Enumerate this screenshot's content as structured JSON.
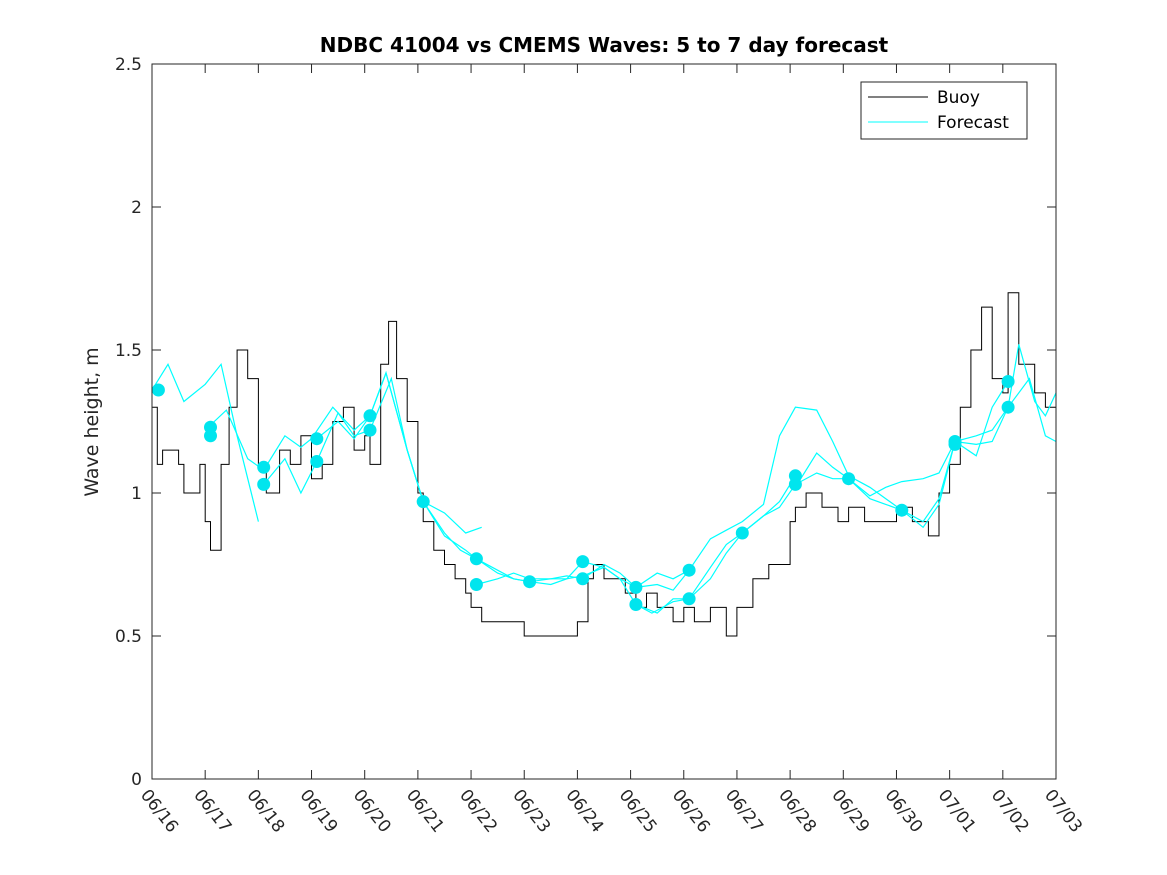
{
  "chart_data": {
    "type": "line",
    "title": "NDBC 41004 vs CMEMS Waves: 5 to 7 day forecast",
    "xlabel": "",
    "ylabel": "Wave height, m",
    "xlim": [
      0,
      17
    ],
    "ylim": [
      0,
      2.5
    ],
    "x_ticks": [
      0,
      1,
      2,
      3,
      4,
      5,
      6,
      7,
      8,
      9,
      10,
      11,
      12,
      13,
      14,
      15,
      16,
      17
    ],
    "x_tick_labels": [
      "06/16",
      "06/17",
      "06/18",
      "06/19",
      "06/20",
      "06/21",
      "06/22",
      "06/23",
      "06/24",
      "06/25",
      "06/26",
      "06/27",
      "06/28",
      "06/29",
      "06/30",
      "07/01",
      "07/02",
      "07/03"
    ],
    "y_ticks": [
      0,
      0.5,
      1,
      1.5,
      2,
      2.5
    ],
    "y_tick_labels": [
      "0",
      "0.5",
      "1",
      "1.5",
      "2",
      "2.5"
    ],
    "x_unit_note": "x values are days, 0 = 06/16",
    "legend": {
      "position": "top-right",
      "entries": [
        "Buoy",
        "Forecast"
      ]
    },
    "grid": false,
    "colors": {
      "buoy": "#000000",
      "forecast": "#00FFFF",
      "marker": "#00E5EE"
    },
    "series": [
      {
        "name": "Buoy",
        "x": [
          0,
          0.1,
          0.2,
          0.5,
          0.6,
          0.9,
          1.0,
          1.1,
          1.3,
          1.45,
          1.6,
          1.8,
          2.0,
          2.15,
          2.4,
          2.6,
          2.8,
          3.0,
          3.2,
          3.4,
          3.6,
          3.8,
          4.0,
          4.1,
          4.3,
          4.45,
          4.6,
          4.8,
          5.0,
          5.1,
          5.3,
          5.5,
          5.7,
          5.9,
          6.0,
          6.2,
          6.5,
          7.0,
          7.5,
          8.0,
          8.2,
          8.3,
          8.5,
          8.7,
          8.9,
          9.1,
          9.3,
          9.5,
          9.8,
          10.0,
          10.2,
          10.5,
          10.8,
          11.0,
          11.3,
          11.6,
          12.0,
          12.1,
          12.3,
          12.6,
          12.9,
          13.1,
          13.4,
          13.7,
          14.0,
          14.3,
          14.6,
          14.8,
          15.0,
          15.2,
          15.4,
          15.6,
          15.8,
          16.0,
          16.1,
          16.3,
          16.6,
          16.8,
          17.0
        ],
        "values": [
          1.3,
          1.1,
          1.15,
          1.1,
          1.0,
          1.1,
          0.9,
          0.8,
          1.1,
          1.3,
          1.5,
          1.4,
          1.1,
          1.0,
          1.15,
          1.1,
          1.2,
          1.05,
          1.1,
          1.25,
          1.3,
          1.15,
          1.2,
          1.1,
          1.45,
          1.6,
          1.4,
          1.25,
          1.0,
          0.9,
          0.8,
          0.75,
          0.7,
          0.65,
          0.6,
          0.55,
          0.55,
          0.5,
          0.5,
          0.55,
          0.7,
          0.75,
          0.7,
          0.7,
          0.65,
          0.6,
          0.65,
          0.6,
          0.55,
          0.6,
          0.55,
          0.6,
          0.5,
          0.6,
          0.7,
          0.75,
          0.9,
          0.95,
          1.0,
          0.95,
          0.9,
          0.95,
          0.9,
          0.9,
          0.95,
          0.9,
          0.85,
          1.0,
          1.1,
          1.3,
          1.5,
          1.65,
          1.4,
          1.35,
          1.7,
          1.45,
          1.35,
          1.3,
          1.3
        ]
      },
      {
        "name": "Forecast",
        "x": [
          0,
          0.3,
          0.6,
          1.0,
          1.3,
          1.6,
          2.0
        ],
        "values": [
          1.36,
          1.45,
          1.32,
          1.38,
          1.45,
          1.2,
          0.9
        ]
      },
      {
        "name": "Forecast",
        "x": [
          1.0,
          1.4,
          1.8,
          2.1,
          2.5,
          2.8,
          3.0,
          3.4,
          3.8,
          4.1,
          4.4,
          4.8,
          5.1,
          5.5,
          5.9,
          6.2
        ],
        "values": [
          1.22,
          1.29,
          1.12,
          1.08,
          1.2,
          1.16,
          1.19,
          1.3,
          1.22,
          1.27,
          1.42,
          1.15,
          0.97,
          0.93,
          0.86,
          0.88
        ]
      },
      {
        "name": "Forecast",
        "x": [
          2.1,
          2.5,
          2.8,
          3.1,
          3.5,
          3.8,
          4.1,
          4.5,
          4.8,
          5.1,
          5.5,
          5.8,
          6.1,
          6.5,
          6.8,
          7.1,
          7.5,
          7.8,
          8.1,
          8.5,
          8.8,
          9.1,
          9.5,
          9.8,
          10.1
        ],
        "values": [
          1.03,
          1.12,
          1.0,
          1.11,
          1.28,
          1.2,
          1.22,
          1.4,
          1.15,
          0.97,
          0.86,
          0.8,
          0.77,
          0.73,
          0.7,
          0.69,
          0.7,
          0.7,
          0.71,
          0.74,
          0.7,
          0.67,
          0.68,
          0.66,
          0.73
        ]
      },
      {
        "name": "Forecast",
        "x": [
          3.1,
          3.5,
          3.8,
          4.1,
          4.4,
          4.8,
          5.1,
          5.5,
          5.9,
          6.1,
          6.5,
          6.8,
          7.1,
          7.5,
          7.8,
          8.1,
          8.5,
          8.8,
          9.1,
          9.4,
          9.8,
          10.1,
          10.5,
          10.8,
          11.1,
          11.5,
          11.8,
          12.1
        ],
        "values": [
          1.19,
          1.25,
          1.19,
          1.27,
          1.42,
          1.15,
          0.97,
          0.85,
          0.8,
          0.77,
          0.72,
          0.7,
          0.69,
          0.68,
          0.7,
          0.76,
          0.74,
          0.7,
          0.61,
          0.58,
          0.62,
          0.63,
          0.7,
          0.79,
          0.86,
          0.92,
          0.97,
          1.06
        ]
      },
      {
        "name": "Forecast",
        "x": [
          6.1,
          6.5,
          6.8,
          7.1,
          7.5,
          7.8,
          8.1,
          8.5,
          8.8,
          9.1,
          9.5,
          9.8,
          10.1,
          10.5,
          10.8,
          11.1,
          11.5,
          11.8,
          12.1,
          12.5,
          12.8,
          13.1,
          13.5,
          13.8,
          14.1,
          14.5,
          14.8,
          15.1,
          15.5,
          15.8,
          16.1
        ],
        "values": [
          0.68,
          0.7,
          0.72,
          0.7,
          0.7,
          0.71,
          0.7,
          0.75,
          0.72,
          0.67,
          0.72,
          0.7,
          0.73,
          0.84,
          0.87,
          0.9,
          0.96,
          1.2,
          1.3,
          1.29,
          1.18,
          1.06,
          1.02,
          0.98,
          0.94,
          0.9,
          0.98,
          1.18,
          1.13,
          1.3,
          1.39
        ]
      },
      {
        "name": "Forecast",
        "x": [
          9.1,
          9.5,
          9.8,
          10.1,
          10.5,
          10.8,
          11.1,
          11.5,
          11.8,
          12.1,
          12.5,
          12.8,
          13.1,
          13.5,
          13.8,
          14.1,
          14.5,
          14.8,
          15.1,
          15.5,
          15.8,
          16.1,
          16.5,
          16.8,
          17.0
        ],
        "values": [
          0.61,
          0.58,
          0.63,
          0.63,
          0.74,
          0.82,
          0.86,
          0.92,
          0.95,
          1.03,
          1.07,
          1.05,
          1.05,
          0.99,
          1.02,
          1.04,
          1.05,
          1.07,
          1.18,
          1.2,
          1.22,
          1.3,
          1.4,
          1.2,
          1.18
        ]
      },
      {
        "name": "Forecast",
        "x": [
          12.1,
          12.5,
          12.8,
          13.1,
          13.5,
          13.8,
          14.1,
          14.5,
          14.8,
          15.1,
          15.5,
          15.8,
          16.1,
          16.3,
          16.6,
          16.8,
          17.0
        ],
        "values": [
          1.02,
          1.14,
          1.09,
          1.05,
          0.98,
          0.96,
          0.94,
          0.88,
          0.96,
          1.18,
          1.17,
          1.18,
          1.3,
          1.52,
          1.32,
          1.27,
          1.35
        ]
      }
    ],
    "forecast_init_markers": {
      "x": [
        0.12,
        1.1,
        1.1,
        2.1,
        2.1,
        3.1,
        3.1,
        4.1,
        4.1,
        5.1,
        6.1,
        6.1,
        7.1,
        8.1,
        8.1,
        9.1,
        9.1,
        10.1,
        10.1,
        11.1,
        12.1,
        12.1,
        13.1,
        14.1,
        15.1,
        15.1,
        16.1,
        16.1
      ],
      "values": [
        1.36,
        1.23,
        1.2,
        1.09,
        1.03,
        1.19,
        1.11,
        1.27,
        1.22,
        0.97,
        0.77,
        0.68,
        0.69,
        0.76,
        0.7,
        0.67,
        0.61,
        0.73,
        0.63,
        0.86,
        1.06,
        1.03,
        1.05,
        0.94,
        1.18,
        1.17,
        1.39,
        1.3
      ]
    }
  }
}
